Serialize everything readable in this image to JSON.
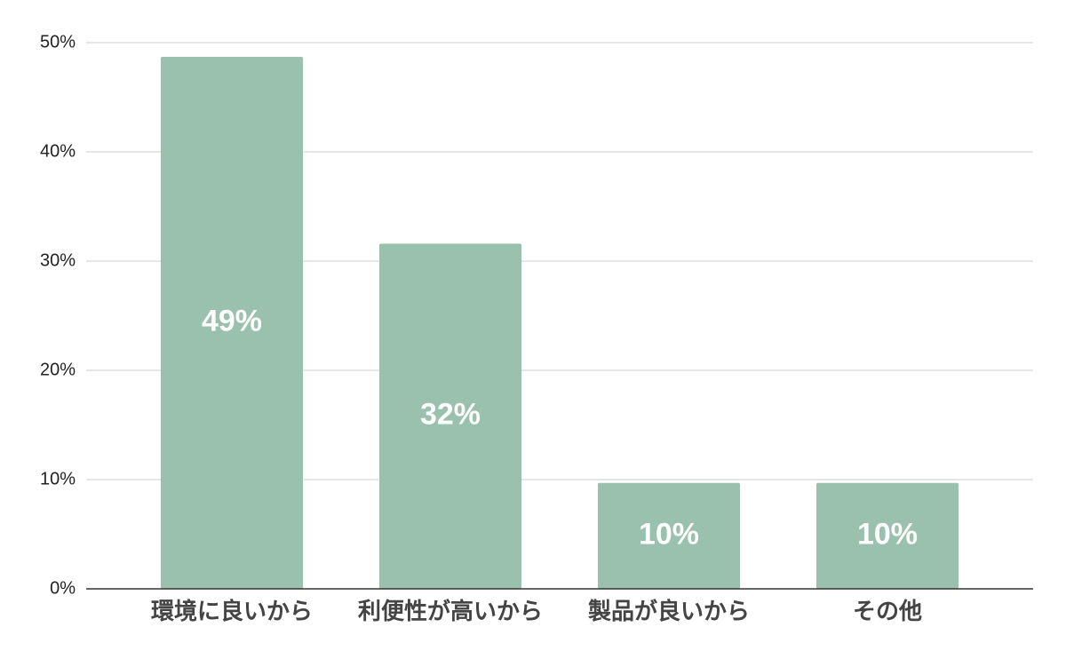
{
  "chart_data": {
    "type": "bar",
    "categories": [
      "環境に良いから",
      "利便性が高いから",
      "製品が良いから",
      "その他"
    ],
    "values": [
      48.7,
      31.6,
      9.7,
      9.7
    ],
    "value_labels": [
      "49%",
      "32%",
      "10%",
      "10%"
    ],
    "color": "#99c1ad",
    "ylim": [
      0,
      50
    ],
    "yticks": [
      {
        "value": 0,
        "label": "0%"
      },
      {
        "value": 10,
        "label": "10%"
      },
      {
        "value": 20,
        "label": "20%"
      },
      {
        "value": 30,
        "label": "30%"
      },
      {
        "value": 40,
        "label": "40%"
      },
      {
        "value": 50,
        "label": "50%"
      }
    ],
    "grid": true
  }
}
